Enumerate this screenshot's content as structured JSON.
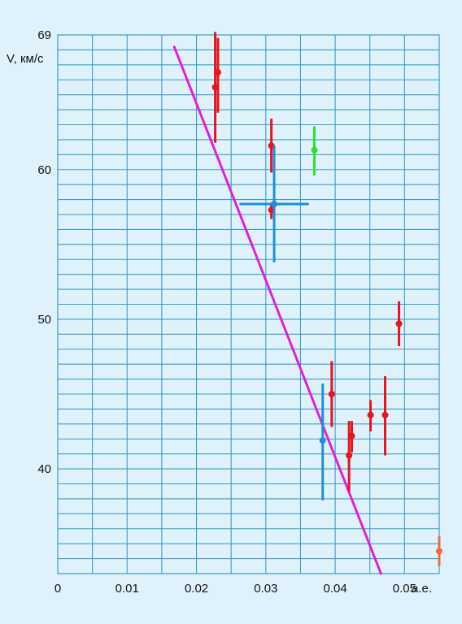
{
  "chart_data": {
    "type": "scatter",
    "title": "",
    "xlabel": "а.е.",
    "ylabel": "V, км/с",
    "xlim": [
      0,
      0.055
    ],
    "ylim": [
      33,
      69
    ],
    "x_ticks": [
      {
        "value": 0,
        "label": "0"
      },
      {
        "value": 0.01,
        "label": "0.01"
      },
      {
        "value": 0.02,
        "label": "0.02"
      },
      {
        "value": 0.03,
        "label": "0.03"
      },
      {
        "value": 0.04,
        "label": "0.04"
      },
      {
        "value": 0.05,
        "label": "0.05"
      }
    ],
    "y_ticks": [
      {
        "value": 40,
        "label": "40"
      },
      {
        "value": 50,
        "label": "50"
      },
      {
        "value": 60,
        "label": "60"
      },
      {
        "value": 69,
        "label": "69"
      }
    ],
    "grid": true,
    "colors": {
      "grid": "#3a9cc8",
      "background": "#dff2fc",
      "fit_line": "#e020e0",
      "red": "#e8141e",
      "blue": "#1e8ee0",
      "green": "#2ee02e",
      "orange": "#f06a40"
    },
    "fit_line": {
      "x": [
        0.0168,
        0.0466
      ],
      "y": [
        68.2,
        33.0
      ]
    },
    "series": [
      {
        "color": "red",
        "points": [
          {
            "x": 0.0227,
            "y": 65.5,
            "yerr": [
              61.8,
              69.2
            ]
          },
          {
            "x": 0.0231,
            "y": 66.5,
            "yerr": [
              63.8,
              68.8
            ]
          },
          {
            "x": 0.0308,
            "y": 61.6,
            "yerr": [
              59.8,
              63.4
            ]
          },
          {
            "x": 0.0308,
            "y": 57.3,
            "yerr": [
              56.7,
              57.8
            ]
          },
          {
            "x": 0.0395,
            "y": 45.0,
            "yerr": [
              42.8,
              47.2
            ]
          },
          {
            "x": 0.042,
            "y": 40.9,
            "yerr": [
              38.5,
              43.2
            ]
          },
          {
            "x": 0.0424,
            "y": 42.2,
            "yerr": [
              41.1,
              43.2
            ]
          },
          {
            "x": 0.0451,
            "y": 43.6,
            "yerr": [
              42.5,
              44.6
            ]
          },
          {
            "x": 0.0472,
            "y": 43.6,
            "yerr": [
              40.9,
              46.2
            ]
          },
          {
            "x": 0.0492,
            "y": 49.7,
            "yerr": [
              48.2,
              51.2
            ]
          }
        ]
      },
      {
        "color": "blue",
        "points": [
          {
            "x": 0.0312,
            "y": 57.7,
            "yerr": [
              53.8,
              61.6
            ],
            "xerr": [
              0.0262,
              0.0362
            ]
          },
          {
            "x": 0.0382,
            "y": 41.9,
            "yerr": [
              37.9,
              45.7
            ]
          }
        ]
      },
      {
        "color": "green",
        "points": [
          {
            "x": 0.037,
            "y": 61.3,
            "yerr": [
              59.6,
              62.9
            ]
          }
        ]
      },
      {
        "color": "orange",
        "points": [
          {
            "x": 0.055,
            "y": 34.5,
            "yerr": [
              33.5,
              35.5
            ]
          }
        ]
      }
    ]
  }
}
